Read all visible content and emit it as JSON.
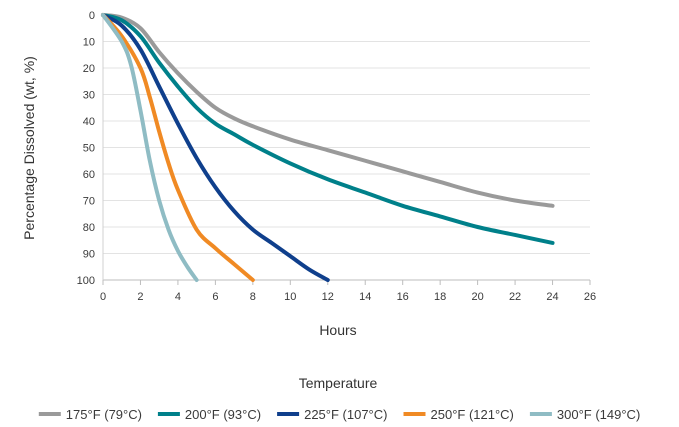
{
  "chart_data": {
    "type": "line",
    "xlabel": "Hours",
    "ylabel": "Percentage Dissolved (wt, %)",
    "xlim": [
      0,
      26
    ],
    "ylim": [
      0,
      100
    ],
    "y_inverted": true,
    "grid": true,
    "x_ticks": [
      "0",
      "2",
      "4",
      "6",
      "8",
      "10",
      "12",
      "14",
      "16",
      "18",
      "20",
      "22",
      "24",
      "26"
    ],
    "y_ticks": [
      "0",
      "10",
      "20",
      "30",
      "40",
      "50",
      "60",
      "70",
      "80",
      "90",
      "100"
    ],
    "legend_title": "Temperature",
    "legend_position": "bottom",
    "series": [
      {
        "name": "175°F (79°C)",
        "color": "#9a9a9a",
        "x": [
          0,
          1,
          2,
          3,
          4,
          5,
          6,
          7,
          8,
          10,
          12,
          14,
          16,
          18,
          20,
          22,
          24
        ],
        "y": [
          0,
          1,
          5,
          14,
          22,
          29,
          35,
          39,
          42,
          47,
          51,
          55,
          59,
          63,
          67,
          70,
          72
        ]
      },
      {
        "name": "200°F (93°C)",
        "color": "#00808a",
        "x": [
          0,
          1,
          2,
          3,
          4,
          5,
          6,
          7,
          8,
          10,
          12,
          14,
          16,
          18,
          20,
          22,
          24
        ],
        "y": [
          0,
          2,
          8,
          18,
          27,
          35,
          41,
          45,
          49,
          56,
          62,
          67,
          72,
          76,
          80,
          83,
          86
        ]
      },
      {
        "name": "225°F (107°C)",
        "color": "#0f3f8c",
        "x": [
          0,
          1,
          2,
          3,
          4,
          5,
          6,
          7,
          8,
          9,
          10,
          11,
          12
        ],
        "y": [
          0,
          4,
          13,
          27,
          41,
          54,
          65,
          74,
          81,
          86,
          91,
          96,
          100
        ]
      },
      {
        "name": "250°F (121°C)",
        "color": "#f08a24",
        "x": [
          0,
          1,
          2,
          2.5,
          3,
          3.5,
          4,
          5,
          6,
          7,
          8
        ],
        "y": [
          0,
          8,
          20,
          31,
          44,
          56,
          66,
          81,
          88,
          94,
          100
        ]
      },
      {
        "name": "300°F (149°C)",
        "color": "#8fbcc4",
        "x": [
          0,
          1,
          1.5,
          2,
          2.5,
          3,
          3.5,
          4,
          4.5,
          5
        ],
        "y": [
          0,
          10,
          19,
          36,
          55,
          70,
          81,
          89,
          95,
          100
        ]
      }
    ]
  }
}
